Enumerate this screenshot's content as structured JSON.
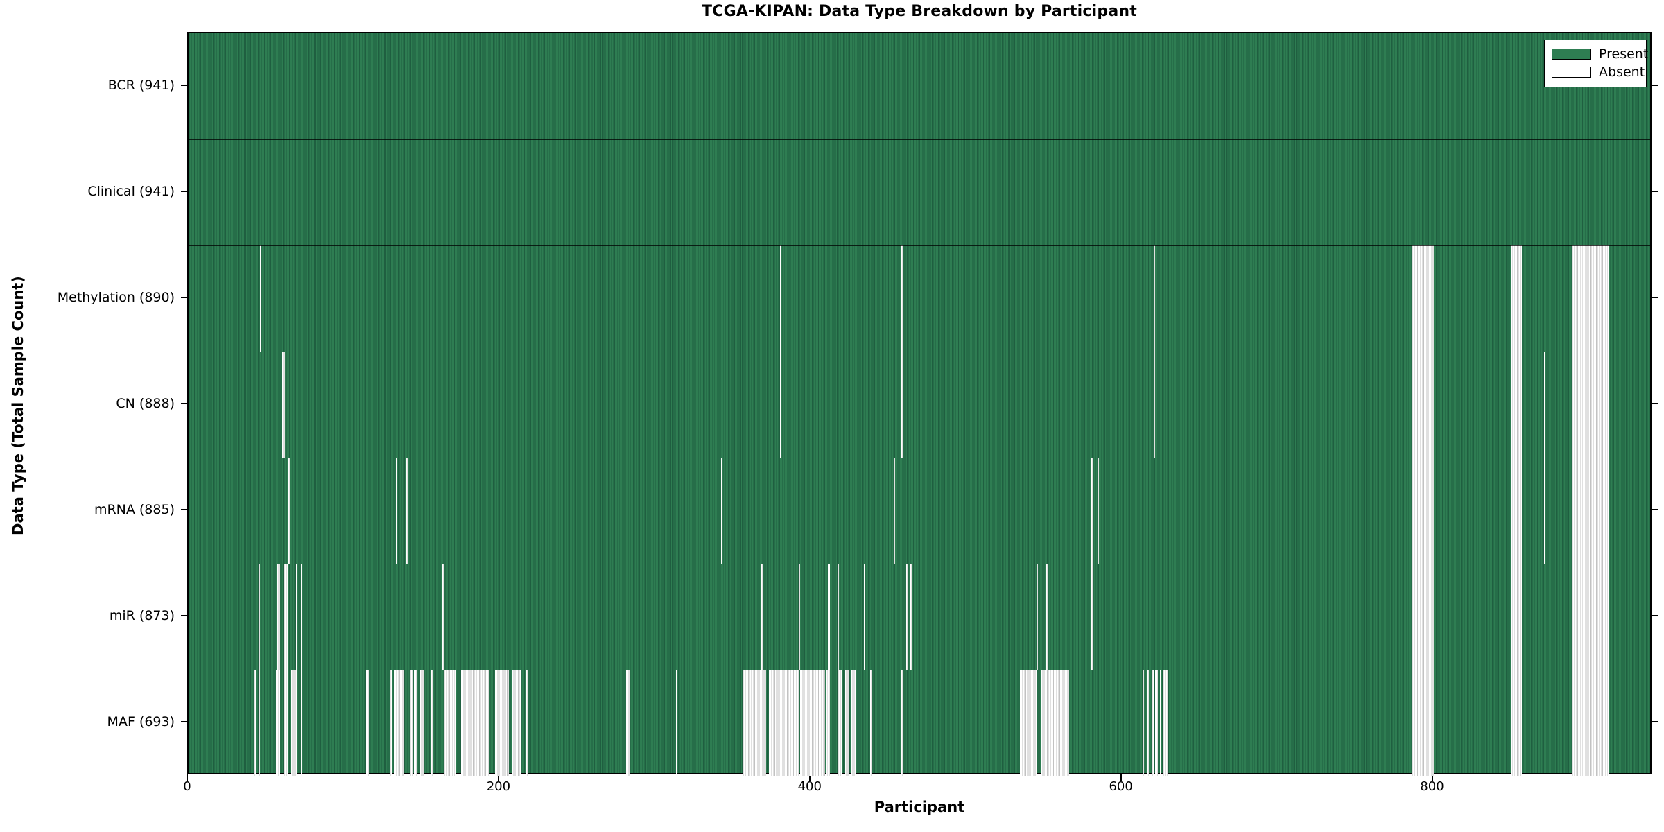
{
  "title": "TCGA-KIPAN: Data Type Breakdown by Participant",
  "x_axis": {
    "label": "Participant",
    "ticks": [
      0,
      200,
      400,
      600,
      800
    ],
    "min": 0,
    "max": 941
  },
  "y_axis": {
    "label": "Data Type (Total Sample Count)"
  },
  "legend": {
    "items": [
      {
        "label": "Present",
        "color": "#2e7d52"
      },
      {
        "label": "Absent",
        "color": "#ffffff"
      }
    ]
  },
  "colors": {
    "present_fill": "#2e7d52",
    "present_edge": "#1f5f40",
    "absent_fill": "#ffffff",
    "absent_edge": "#c2c2c2",
    "border": "#000000",
    "background": "#ffffff"
  },
  "chart_data": {
    "type": "heatmap",
    "title": "TCGA-KIPAN: Data Type Breakdown by Participant",
    "xlabel": "Participant",
    "ylabel": "Data Type (Total Sample Count)",
    "x_range": [
      0,
      941
    ],
    "n_participants": 941,
    "grid": false,
    "legend_position": "upper right",
    "legend_entries": [
      "Present",
      "Absent"
    ],
    "value_encoding": {
      "present": "green filled bar",
      "absent": "white bar"
    },
    "rows": [
      {
        "label": "BCR (941)",
        "name": "BCR",
        "total_samples": 941,
        "absent_intervals": []
      },
      {
        "label": "Clinical (941)",
        "name": "Clinical",
        "total_samples": 941,
        "absent_intervals": []
      },
      {
        "label": "Methylation (890)",
        "name": "Methylation",
        "total_samples": 890,
        "absent_intervals": [
          [
            46,
            47
          ],
          [
            380,
            381
          ],
          [
            458,
            459
          ],
          [
            620,
            621
          ],
          [
            786,
            800
          ],
          [
            850,
            857
          ],
          [
            889,
            913
          ]
        ]
      },
      {
        "label": "CN (888)",
        "name": "CN",
        "total_samples": 888,
        "absent_intervals": [
          [
            60,
            62
          ],
          [
            380,
            381
          ],
          [
            458,
            459
          ],
          [
            620,
            621
          ],
          [
            786,
            800
          ],
          [
            850,
            857
          ],
          [
            871,
            872
          ],
          [
            889,
            913
          ]
        ]
      },
      {
        "label": "mRNA (885)",
        "name": "mRNA",
        "total_samples": 885,
        "absent_intervals": [
          [
            64,
            65
          ],
          [
            133,
            134
          ],
          [
            140,
            141
          ],
          [
            342,
            343
          ],
          [
            453,
            454
          ],
          [
            580,
            581
          ],
          [
            584,
            585
          ],
          [
            786,
            800
          ],
          [
            850,
            857
          ],
          [
            871,
            872
          ],
          [
            889,
            913
          ]
        ]
      },
      {
        "label": "miR (873)",
        "name": "miR",
        "total_samples": 873,
        "absent_intervals": [
          [
            45,
            46
          ],
          [
            57,
            59
          ],
          [
            61,
            64
          ],
          [
            69,
            70
          ],
          [
            72,
            73
          ],
          [
            163,
            164
          ],
          [
            368,
            369
          ],
          [
            392,
            393
          ],
          [
            411,
            412
          ],
          [
            417,
            418
          ],
          [
            434,
            435
          ],
          [
            461,
            462
          ],
          [
            464,
            465
          ],
          [
            545,
            546
          ],
          [
            551,
            552
          ],
          [
            580,
            581
          ],
          [
            786,
            800
          ],
          [
            850,
            857
          ],
          [
            889,
            913
          ]
        ]
      },
      {
        "label": "MAF (693)",
        "name": "MAF",
        "total_samples": 693,
        "absent_intervals": [
          [
            42,
            43
          ],
          [
            45,
            46
          ],
          [
            56,
            59
          ],
          [
            61,
            64
          ],
          [
            66,
            70
          ],
          [
            72,
            73
          ],
          [
            114,
            116
          ],
          [
            129,
            131
          ],
          [
            132,
            138
          ],
          [
            142,
            144
          ],
          [
            145,
            147
          ],
          [
            149,
            151
          ],
          [
            156,
            157
          ],
          [
            164,
            172
          ],
          [
            175,
            193
          ],
          [
            197,
            206
          ],
          [
            208,
            214
          ],
          [
            217,
            218
          ],
          [
            281,
            284
          ],
          [
            313,
            314
          ],
          [
            356,
            371
          ],
          [
            373,
            392
          ],
          [
            393,
            409
          ],
          [
            410,
            412
          ],
          [
            417,
            420
          ],
          [
            422,
            424
          ],
          [
            426,
            429
          ],
          [
            438,
            439
          ],
          [
            458,
            459
          ],
          [
            534,
            545
          ],
          [
            548,
            566
          ],
          [
            613,
            614
          ],
          [
            616,
            617
          ],
          [
            619,
            620
          ],
          [
            621,
            623
          ],
          [
            624,
            625
          ],
          [
            626,
            629
          ],
          [
            786,
            800
          ],
          [
            850,
            857
          ],
          [
            889,
            913
          ]
        ]
      }
    ]
  }
}
